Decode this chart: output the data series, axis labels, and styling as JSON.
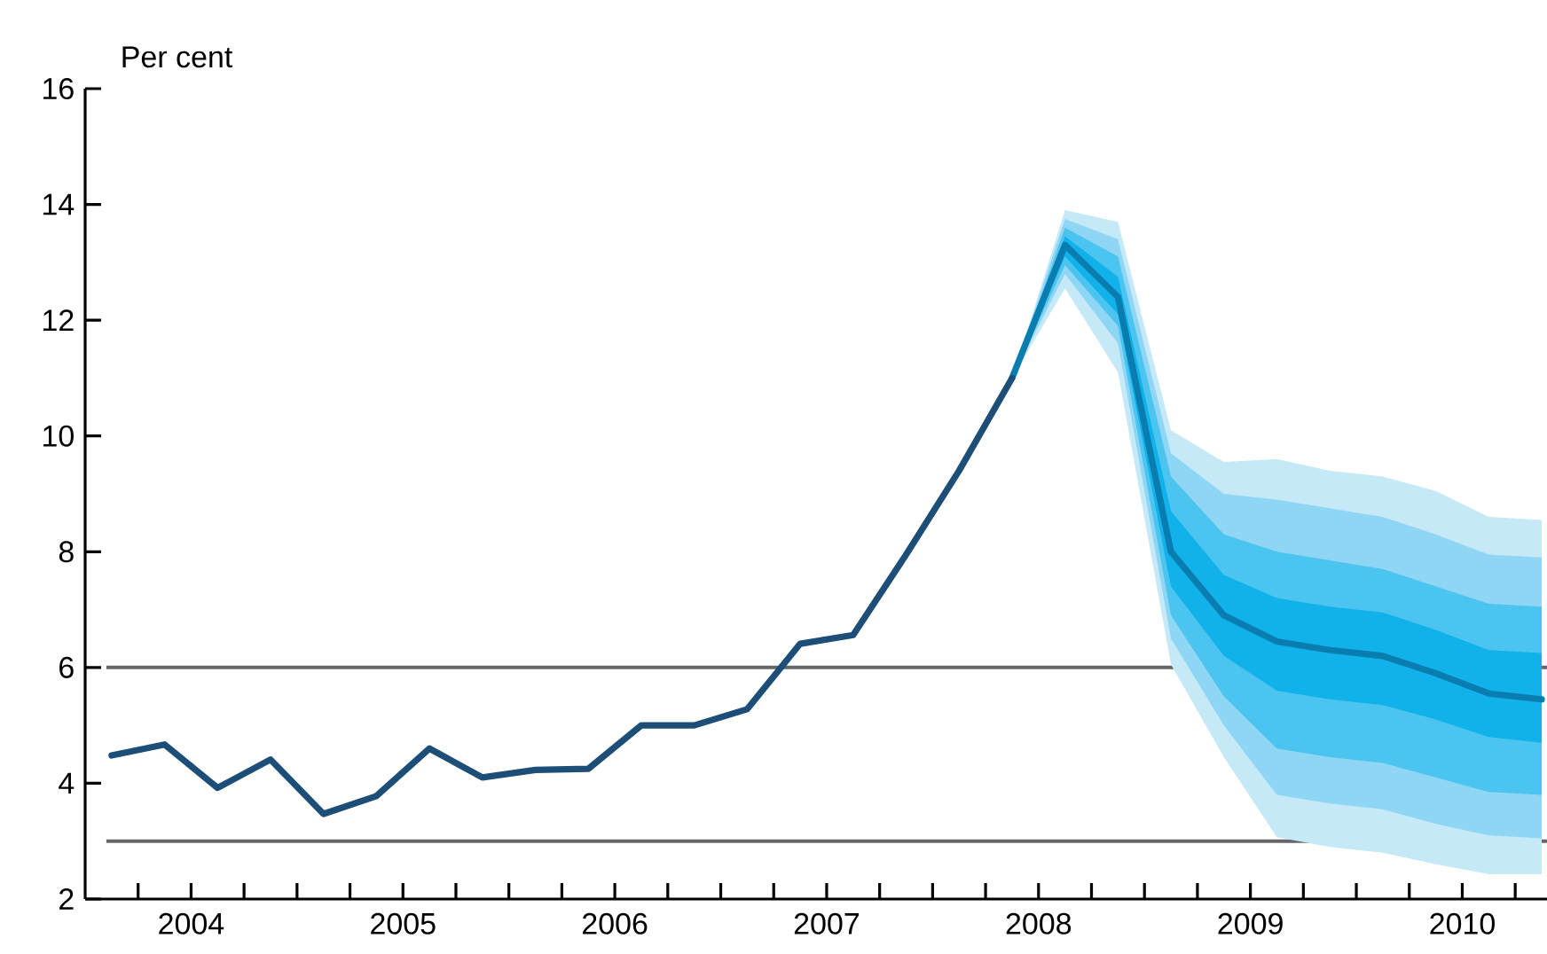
{
  "chart_data": {
    "type": "line",
    "ylabel": "Per cent",
    "xlim": [
      2004,
      2010.9
    ],
    "ylim": [
      2,
      16
    ],
    "yticks": [
      2,
      4,
      6,
      8,
      10,
      12,
      14,
      16
    ],
    "xticks": [
      {
        "value": 2004.25,
        "label": null
      },
      {
        "value": 2004.5,
        "label": "2004"
      },
      {
        "value": 2004.75,
        "label": null
      },
      {
        "value": 2005,
        "label": null
      },
      {
        "value": 2005.25,
        "label": null
      },
      {
        "value": 2005.5,
        "label": "2005"
      },
      {
        "value": 2005.75,
        "label": null
      },
      {
        "value": 2006,
        "label": null
      },
      {
        "value": 2006.25,
        "label": null
      },
      {
        "value": 2006.5,
        "label": "2006"
      },
      {
        "value": 2006.75,
        "label": null
      },
      {
        "value": 2007,
        "label": null
      },
      {
        "value": 2007.25,
        "label": null
      },
      {
        "value": 2007.5,
        "label": "2007"
      },
      {
        "value": 2007.75,
        "label": null
      },
      {
        "value": 2008,
        "label": null
      },
      {
        "value": 2008.25,
        "label": null
      },
      {
        "value": 2008.5,
        "label": "2008"
      },
      {
        "value": 2008.75,
        "label": null
      },
      {
        "value": 2009,
        "label": null
      },
      {
        "value": 2009.25,
        "label": null
      },
      {
        "value": 2009.5,
        "label": "2009"
      },
      {
        "value": 2009.75,
        "label": null
      },
      {
        "value": 2010,
        "label": null
      },
      {
        "value": 2010.25,
        "label": null
      },
      {
        "value": 2010.5,
        "label": "2010"
      },
      {
        "value": 2010.75,
        "label": null
      }
    ],
    "grid": false,
    "ref_lines": [
      {
        "axis": "y",
        "value": 6,
        "color": "#666666"
      },
      {
        "axis": "y",
        "value": 3,
        "color": "#666666"
      }
    ],
    "series": [
      {
        "type": "area",
        "color": "#c6e9f8",
        "x": [
          2008.375,
          2008.625,
          2008.875,
          2009.125,
          2009.375,
          2009.625,
          2009.875,
          2010.125,
          2010.375,
          2010.625,
          2010.875
        ],
        "values": [
          null,
          null,
          null,
          null,
          null,
          null,
          null,
          null,
          null,
          null,
          null
        ],
        "upper": [
          11.0,
          13.9,
          13.7,
          10.1,
          9.55,
          9.6,
          9.4,
          9.3,
          9.05,
          8.6,
          8.55
        ],
        "lower": [
          11.0,
          12.55,
          11.1,
          6.05,
          4.45,
          3.07,
          2.9,
          2.8,
          2.6,
          2.43,
          2.43
        ]
      },
      {
        "type": "area",
        "color": "#8fd6f4",
        "x": [
          2008.375,
          2008.625,
          2008.875,
          2009.125,
          2009.375,
          2009.625,
          2009.875,
          2010.125,
          2010.375,
          2010.625,
          2010.875
        ],
        "values": [
          null,
          null,
          null,
          null,
          null,
          null,
          null,
          null,
          null,
          null,
          null
        ],
        "upper": [
          11.0,
          13.75,
          13.4,
          9.7,
          9.0,
          8.9,
          8.75,
          8.6,
          8.3,
          7.95,
          7.9
        ],
        "lower": [
          11.0,
          12.8,
          11.6,
          6.5,
          5.0,
          3.8,
          3.65,
          3.55,
          3.3,
          3.1,
          3.05
        ]
      },
      {
        "type": "area",
        "color": "#4cc4f0",
        "x": [
          2008.375,
          2008.625,
          2008.875,
          2009.125,
          2009.375,
          2009.625,
          2009.875,
          2010.125,
          2010.375,
          2010.625,
          2010.875
        ],
        "values": [
          null,
          null,
          null,
          null,
          null,
          null,
          null,
          null,
          null,
          null,
          null
        ],
        "upper": [
          11.0,
          13.6,
          13.1,
          9.3,
          8.3,
          8.0,
          7.85,
          7.7,
          7.4,
          7.1,
          7.05
        ],
        "lower": [
          11.0,
          12.95,
          11.9,
          6.9,
          5.5,
          4.6,
          4.45,
          4.35,
          4.1,
          3.85,
          3.8
        ]
      },
      {
        "type": "area",
        "color": "#11b1ea",
        "x": [
          2008.375,
          2008.625,
          2008.875,
          2009.125,
          2009.375,
          2009.625,
          2009.875,
          2010.125,
          2010.375,
          2010.625,
          2010.875
        ],
        "values": [
          null,
          null,
          null,
          null,
          null,
          null,
          null,
          null,
          null,
          null,
          null
        ],
        "upper": [
          11.0,
          13.45,
          12.75,
          8.7,
          7.6,
          7.2,
          7.05,
          6.95,
          6.65,
          6.3,
          6.25
        ],
        "lower": [
          11.0,
          13.1,
          12.1,
          7.4,
          6.2,
          5.6,
          5.45,
          5.35,
          5.1,
          4.8,
          4.7
        ]
      },
      {
        "color": "#0a7db0",
        "x": [
          2008.375,
          2008.625,
          2008.875,
          2009.125,
          2009.375,
          2009.625,
          2009.875,
          2010.125,
          2010.375,
          2010.625,
          2010.875
        ],
        "values": [
          11.0,
          13.3,
          12.4,
          8.0,
          6.9,
          6.45,
          6.3,
          6.2,
          5.9,
          5.55,
          5.45
        ]
      },
      {
        "color": "#1c4e78",
        "x": [
          2004.125,
          2004.375,
          2004.625,
          2004.875,
          2005.125,
          2005.375,
          2005.625,
          2005.875,
          2006.125,
          2006.375,
          2006.625,
          2006.875,
          2007.125,
          2007.375,
          2007.625,
          2007.875,
          2008.125,
          2008.375
        ],
        "values": [
          4.48,
          4.67,
          3.92,
          4.41,
          3.47,
          3.78,
          4.6,
          4.1,
          4.23,
          4.25,
          5.0,
          5.0,
          5.28,
          6.41,
          6.56,
          7.95,
          9.4,
          11.0
        ]
      }
    ]
  }
}
